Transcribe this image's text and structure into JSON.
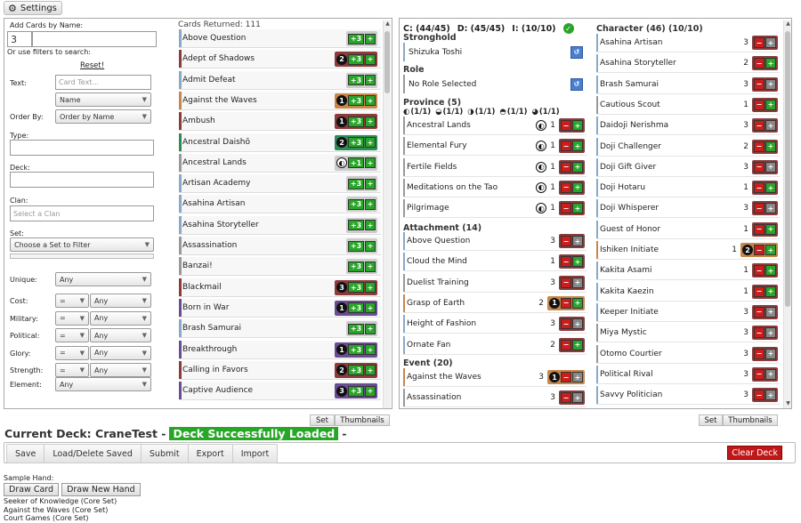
{
  "settings_label": "Settings",
  "filters": {
    "add_by_name": "Add Cards by Name:",
    "qty": "3",
    "or_filters": "Or use filters to search:",
    "reset": "Reset!",
    "text_label": "Text:",
    "text_placeholder": "Card Text...",
    "name_select": "Name",
    "order_label": "Order By:",
    "order_select": "Order by Name",
    "type_label": "Type:",
    "deck_label": "Deck:",
    "clan_label": "Clan:",
    "clan_placeholder": "Select a Clan",
    "set_label": "Set:",
    "set_select": "Choose a Set to Filter",
    "unique_label": "Unique:",
    "unique_val": "Any",
    "cost_label": "Cost:",
    "military_label": "Military:",
    "political_label": "Political:",
    "glory_label": "Glory:",
    "strength_label": "Strength:",
    "element_label": "Element:",
    "eq": "=",
    "any": "Any"
  },
  "cards_returned": "Cards Returned: 111",
  "card_list": [
    {
      "name": "Above Question",
      "color": "#8aa8c8",
      "qty": ""
    },
    {
      "name": "Adept of Shadows",
      "color": "#8c3b3b",
      "qty": "2"
    },
    {
      "name": "Admit Defeat",
      "color": "#8aa8c8",
      "qty": ""
    },
    {
      "name": "Against the Waves",
      "color": "#c8864a",
      "qty": "1"
    },
    {
      "name": "Ambush",
      "color": "#8c3b3b",
      "qty": "1"
    },
    {
      "name": "Ancestral Daishō",
      "color": "#2e8b57",
      "qty": "2"
    },
    {
      "name": "Ancestral Lands",
      "color": "#999999",
      "qty": "",
      "icon": "water-element-icon"
    },
    {
      "name": "Artisan Academy",
      "color": "#8aa8c8",
      "qty": ""
    },
    {
      "name": "Asahina Artisan",
      "color": "#8aa8c8",
      "qty": ""
    },
    {
      "name": "Asahina Storyteller",
      "color": "#8aa8c8",
      "qty": ""
    },
    {
      "name": "Assassination",
      "color": "#999999",
      "qty": ""
    },
    {
      "name": "Banzai!",
      "color": "#999999",
      "qty": ""
    },
    {
      "name": "Blackmail",
      "color": "#8c3b3b",
      "qty": "3"
    },
    {
      "name": "Born in War",
      "color": "#6a4c93",
      "qty": "1"
    },
    {
      "name": "Brash Samurai",
      "color": "#8aa8c8",
      "qty": ""
    },
    {
      "name": "Breakthrough",
      "color": "#6a4c93",
      "qty": "1"
    },
    {
      "name": "Calling in Favors",
      "color": "#8c3b3b",
      "qty": "2"
    },
    {
      "name": "Captive Audience",
      "color": "#6a4c93",
      "qty": "3"
    }
  ],
  "deck_stats": {
    "c": "C: (44/45)",
    "d": "D: (45/45)",
    "i": "I: (10/10)"
  },
  "stronghold": {
    "header": "Stronghold",
    "name": "Shizuka Toshi"
  },
  "role": {
    "header": "Role",
    "name": "No Role Selected"
  },
  "province": {
    "header": "Province (5)",
    "rings": [
      "(1/1)",
      "(1/1)",
      "(1/1)",
      "(1/1)",
      "(1/1)"
    ],
    "items": [
      {
        "name": "Ancestral Lands",
        "qty": "1"
      },
      {
        "name": "Elemental Fury",
        "qty": "1"
      },
      {
        "name": "Fertile Fields",
        "qty": "1"
      },
      {
        "name": "Meditations on the Tao",
        "qty": "1"
      },
      {
        "name": "Pilgrimage",
        "qty": "1"
      }
    ]
  },
  "attachment": {
    "header": "Attachment (14)",
    "items": [
      {
        "name": "Above Question",
        "qty": "3",
        "color": "#8aa8c8",
        "inf": ""
      },
      {
        "name": "Cloud the Mind",
        "qty": "1",
        "color": "#8aa8c8",
        "inf": ""
      },
      {
        "name": "Duelist Training",
        "qty": "3",
        "color": "#999999",
        "inf": ""
      },
      {
        "name": "Grasp of Earth",
        "qty": "2",
        "color": "#c8864a",
        "inf": "1"
      },
      {
        "name": "Height of Fashion",
        "qty": "3",
        "color": "#8aa8c8",
        "inf": ""
      },
      {
        "name": "Ornate Fan",
        "qty": "2",
        "color": "#8aa8c8",
        "inf": ""
      }
    ]
  },
  "event": {
    "header": "Event (20)",
    "items": [
      {
        "name": "Against the Waves",
        "qty": "3",
        "color": "#c8864a",
        "inf": "1"
      },
      {
        "name": "Assassination",
        "qty": "3",
        "color": "#999999",
        "inf": ""
      }
    ]
  },
  "character": {
    "header": "Character (46) (10/10)",
    "items": [
      {
        "name": "Asahina Artisan",
        "qty": "3",
        "color": "#8aa8c8",
        "inf": ""
      },
      {
        "name": "Asahina Storyteller",
        "qty": "2",
        "color": "#8aa8c8",
        "inf": ""
      },
      {
        "name": "Brash Samurai",
        "qty": "3",
        "color": "#8aa8c8",
        "inf": ""
      },
      {
        "name": "Cautious Scout",
        "qty": "1",
        "color": "#999999",
        "inf": ""
      },
      {
        "name": "Daidoji Nerishma",
        "qty": "3",
        "color": "#8aa8c8",
        "inf": ""
      },
      {
        "name": "Doji Challenger",
        "qty": "2",
        "color": "#8aa8c8",
        "inf": ""
      },
      {
        "name": "Doji Gift Giver",
        "qty": "3",
        "color": "#8aa8c8",
        "inf": ""
      },
      {
        "name": "Doji Hotaru",
        "qty": "1",
        "color": "#8aa8c8",
        "inf": ""
      },
      {
        "name": "Doji Whisperer",
        "qty": "3",
        "color": "#8aa8c8",
        "inf": ""
      },
      {
        "name": "Guest of Honor",
        "qty": "1",
        "color": "#8aa8c8",
        "inf": ""
      },
      {
        "name": "Ishiken Initiate",
        "qty": "1",
        "color": "#c8864a",
        "inf": "2"
      },
      {
        "name": "Kakita Asami",
        "qty": "1",
        "color": "#8aa8c8",
        "inf": ""
      },
      {
        "name": "Kakita Kaezin",
        "qty": "1",
        "color": "#8aa8c8",
        "inf": ""
      },
      {
        "name": "Keeper Initiate",
        "qty": "3",
        "color": "#8aa8c8",
        "inf": ""
      },
      {
        "name": "Miya Mystic",
        "qty": "3",
        "color": "#999999",
        "inf": ""
      },
      {
        "name": "Otomo Courtier",
        "qty": "3",
        "color": "#999999",
        "inf": ""
      },
      {
        "name": "Political Rival",
        "qty": "3",
        "color": "#8aa8c8",
        "inf": ""
      },
      {
        "name": "Savvy Politician",
        "qty": "3",
        "color": "#8aa8c8",
        "inf": ""
      }
    ]
  },
  "view_toggle": {
    "set": "Set",
    "thumbs": "Thumbnails"
  },
  "current_deck": {
    "label": "Current Deck: CraneTest -",
    "status": "Deck Successfully Loaded",
    "suffix": "-"
  },
  "toolbar": {
    "save": "Save",
    "load": "Load/Delete Saved",
    "submit": "Submit",
    "export": "Export",
    "import": "Import",
    "clear": "Clear Deck"
  },
  "sample": {
    "label": "Sample Hand:",
    "draw_card": "Draw Card",
    "draw_hand": "Draw New Hand",
    "cards": [
      "Seeker of Knowledge (Core Set)",
      "Against the Waves (Core Set)",
      "Court Games (Core Set)"
    ]
  }
}
